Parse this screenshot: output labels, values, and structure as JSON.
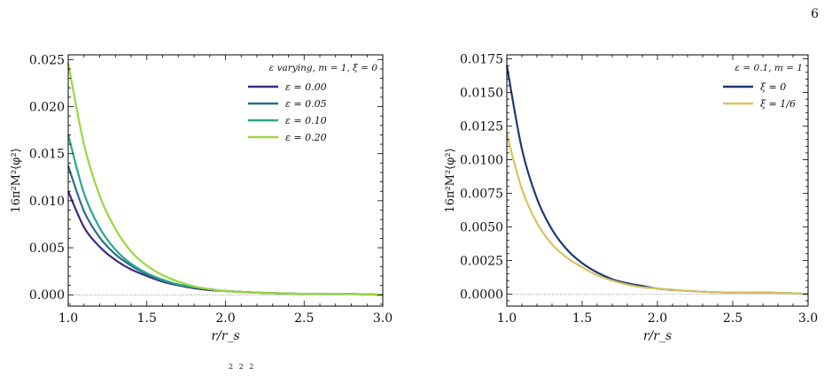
{
  "page_number": "6",
  "caption_fragment": "2  2  2",
  "colors": {
    "eps_0_00": "#3e2a80",
    "eps_0_05": "#2c6c8e",
    "eps_0_10": "#27a88a",
    "eps_0_20": "#9cd63c",
    "xi_0": "#1f3776",
    "xi_1_6": "#d8c45e",
    "zero_line": "#888888"
  },
  "chart_data": [
    {
      "type": "line",
      "title": "",
      "xlabel": "r/r_s",
      "ylabel": "16π²M²⟨φ²⟩",
      "xlim": [
        1.0,
        3.0
      ],
      "ylim": [
        -0.0012,
        0.0255
      ],
      "xticks": [
        "1.0",
        "1.5",
        "2.0",
        "2.5",
        "3.0"
      ],
      "yticks": [
        "0.000",
        "0.005",
        "0.010",
        "0.015",
        "0.020",
        "0.025"
      ],
      "legend_title": "ε varying, m = 1, ξ = 0",
      "legend_position": "top-right",
      "zero_line": true,
      "x": [
        1.0,
        1.1,
        1.2,
        1.3,
        1.4,
        1.5,
        1.6,
        1.7,
        1.8,
        1.9,
        2.0,
        2.25,
        2.5,
        2.75,
        3.0
      ],
      "series": [
        {
          "name": "ε = 0.00",
          "color_key": "eps_0_00",
          "values": [
            0.011,
            0.0072,
            0.0051,
            0.0037,
            0.0027,
            0.002,
            0.0014,
            0.001,
            0.0007,
            0.0005,
            0.0004,
            0.0002,
            0.0001,
            0.0001,
            0.0
          ]
        },
        {
          "name": "ε = 0.05",
          "color_key": "eps_0_05",
          "values": [
            0.0137,
            0.0089,
            0.0061,
            0.0043,
            0.0031,
            0.0022,
            0.0015,
            0.0011,
            0.0008,
            0.0006,
            0.0004,
            0.0002,
            0.0001,
            0.0001,
            0.0
          ]
        },
        {
          "name": "ε = 0.10",
          "color_key": "eps_0_10",
          "values": [
            0.017,
            0.0108,
            0.0071,
            0.0048,
            0.0033,
            0.0023,
            0.0016,
            0.0011,
            0.0008,
            0.0006,
            0.0004,
            0.0002,
            0.0001,
            0.0001,
            0.0
          ]
        },
        {
          "name": "ε = 0.20",
          "color_key": "eps_0_20",
          "values": [
            0.0246,
            0.016,
            0.0105,
            0.007,
            0.0046,
            0.0031,
            0.0021,
            0.0014,
            0.0009,
            0.0006,
            0.0004,
            0.0002,
            0.0001,
            0.0001,
            0.0
          ]
        }
      ]
    },
    {
      "type": "line",
      "title": "",
      "xlabel": "r/r_s",
      "ylabel": "16π²M²⟨φ²⟩",
      "xlim": [
        1.0,
        3.0
      ],
      "ylim": [
        -0.0009,
        0.0178
      ],
      "xticks": [
        "1.0",
        "1.5",
        "2.0",
        "2.5",
        "3.0"
      ],
      "yticks": [
        "0.0000",
        "0.0025",
        "0.0050",
        "0.0075",
        "0.0100",
        "0.0125",
        "0.0150",
        "0.0175"
      ],
      "legend_title": "ε = 0.1, m = 1",
      "legend_position": "top-right",
      "zero_line": true,
      "x": [
        1.0,
        1.1,
        1.2,
        1.3,
        1.4,
        1.5,
        1.6,
        1.7,
        1.8,
        1.9,
        2.0,
        2.25,
        2.5,
        2.75,
        3.0
      ],
      "series": [
        {
          "name": "ξ = 0",
          "color_key": "xi_0",
          "values": [
            0.017,
            0.0108,
            0.0071,
            0.0048,
            0.0033,
            0.0023,
            0.0016,
            0.0011,
            0.0008,
            0.0006,
            0.0004,
            0.0002,
            0.0001,
            0.0001,
            0.0
          ]
        },
        {
          "name": "ξ = 1/6",
          "color_key": "xi_1_6",
          "values": [
            0.0119,
            0.0078,
            0.0053,
            0.0037,
            0.0027,
            0.002,
            0.0014,
            0.001,
            0.0007,
            0.0005,
            0.0004,
            0.0002,
            0.0001,
            0.0001,
            0.0
          ]
        }
      ]
    }
  ]
}
